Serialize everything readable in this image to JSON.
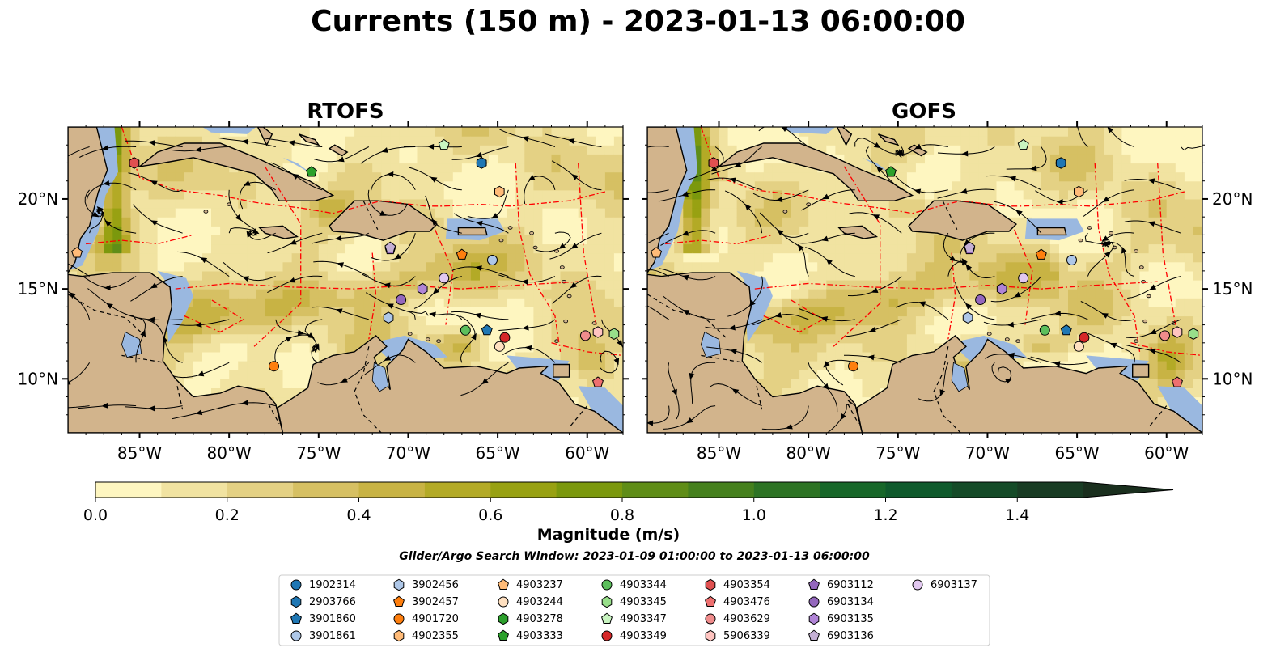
{
  "title": "Currents (150 m) - 2023-01-13 06:00:00",
  "panels": [
    {
      "title": "RTOFS"
    },
    {
      "title": "GOFS"
    }
  ],
  "map_axes": {
    "lon_ticks": [
      "85°W",
      "80°W",
      "75°W",
      "70°W",
      "65°W",
      "60°W"
    ],
    "lat_ticks": [
      "20°N",
      "15°N",
      "10°N"
    ]
  },
  "chart_data": {
    "type": "heatmap",
    "title": "Currents (150 m) - 2023-01-13 06:00:00",
    "panels": [
      "RTOFS",
      "GOFS"
    ],
    "variable": "Magnitude (m/s)",
    "depth": "150 m",
    "xlim": [
      -89.0,
      -58.0
    ],
    "ylim": [
      7.0,
      24.0
    ],
    "colorbar": {
      "label": "Magnitude (m/s)",
      "ticks": [
        0.0,
        0.2,
        0.4,
        0.6,
        0.8,
        1.0,
        1.2,
        1.4
      ],
      "tick_labels": [
        "0.0",
        "0.2",
        "0.4",
        "0.6",
        "0.8",
        "1.0",
        "1.2",
        "1.4"
      ],
      "range": [
        0.0,
        1.5
      ],
      "extend": "max",
      "colors": [
        "#fef6c0",
        "#f1e3a1",
        "#e4d184",
        "#d6c063",
        "#c8b344",
        "#b3aa26",
        "#98a112",
        "#7b980d",
        "#5f8d17",
        "#45801d",
        "#2d7324",
        "#176729",
        "#0f5a2c",
        "#154b28",
        "#193c24",
        "#1a2f1e"
      ]
    },
    "search_window": "Glider/Argo Search Window: 2023-01-09 01:00:00 to 2023-01-13 06:00:00",
    "floats": [
      {
        "id": "1902314",
        "lon": -65.9,
        "lat": 22.0
      },
      {
        "id": "2903766",
        "lon": -65.9,
        "lat": 22.0
      },
      {
        "id": "3901860",
        "lon": -65.6,
        "lat": 12.7
      },
      {
        "id": "3901861",
        "lon": -65.3,
        "lat": 16.6
      },
      {
        "id": "3902456",
        "lon": -71.1,
        "lat": 13.4
      },
      {
        "id": "3902457",
        "lon": -67.0,
        "lat": 16.9
      },
      {
        "id": "4901720",
        "lon": -77.5,
        "lat": 10.7
      },
      {
        "id": "4902355",
        "lon": -64.9,
        "lat": 20.4
      },
      {
        "id": "4903237",
        "lon": -88.5,
        "lat": 17.0
      },
      {
        "id": "4903244",
        "lon": -64.9,
        "lat": 11.8
      },
      {
        "id": "4903278",
        "lon": -85.3,
        "lat": 22.0
      },
      {
        "id": "4903333",
        "lon": -75.4,
        "lat": 21.5
      },
      {
        "id": "4903344",
        "lon": -66.8,
        "lat": 12.7
      },
      {
        "id": "4903345",
        "lon": -58.5,
        "lat": 12.5
      },
      {
        "id": "4903347",
        "lon": -68.0,
        "lat": 23.0
      },
      {
        "id": "4903349",
        "lon": -64.6,
        "lat": 12.3
      },
      {
        "id": "4903354",
        "lon": -85.3,
        "lat": 22.0
      },
      {
        "id": "4903476",
        "lon": -59.4,
        "lat": 9.8
      },
      {
        "id": "4903629",
        "lon": -60.1,
        "lat": 12.4
      },
      {
        "id": "5906339",
        "lon": -59.4,
        "lat": 12.6
      },
      {
        "id": "6903112",
        "lon": -71.0,
        "lat": 17.2
      },
      {
        "id": "6903134",
        "lon": -70.4,
        "lat": 14.4
      },
      {
        "id": "6903135",
        "lon": -69.2,
        "lat": 15.0
      },
      {
        "id": "6903136",
        "lon": -71.0,
        "lat": 17.3
      },
      {
        "id": "6903137",
        "lon": -68.0,
        "lat": 15.6
      }
    ]
  },
  "legend": {
    "items": [
      {
        "label": "1902314",
        "marker": "circle",
        "color": "#1f77b4"
      },
      {
        "label": "2903766",
        "marker": "hexagon",
        "color": "#1f77b4"
      },
      {
        "label": "3901860",
        "marker": "pentagon",
        "color": "#1f77b4"
      },
      {
        "label": "3901861",
        "marker": "circle",
        "color": "#aec7e8"
      },
      {
        "label": "3902456",
        "marker": "hexagon",
        "color": "#aec7e8"
      },
      {
        "label": "3902457",
        "marker": "pentagon",
        "color": "#ff7f0e"
      },
      {
        "label": "4901720",
        "marker": "circle",
        "color": "#ff7f0e"
      },
      {
        "label": "4902355",
        "marker": "hexagon",
        "color": "#ffbb78"
      },
      {
        "label": "4903237",
        "marker": "pentagon",
        "color": "#ffbb78"
      },
      {
        "label": "4903244",
        "marker": "circle",
        "color": "#ffe0c0"
      },
      {
        "label": "4903278",
        "marker": "hexagon",
        "color": "#2ca02c"
      },
      {
        "label": "4903333",
        "marker": "pentagon",
        "color": "#2ca02c"
      },
      {
        "label": "4903344",
        "marker": "circle",
        "color": "#5cbf5c"
      },
      {
        "label": "4903345",
        "marker": "hexagon",
        "color": "#98df8a"
      },
      {
        "label": "4903347",
        "marker": "pentagon",
        "color": "#c8f4c0"
      },
      {
        "label": "4903349",
        "marker": "circle",
        "color": "#d62728"
      },
      {
        "label": "4903354",
        "marker": "hexagon",
        "color": "#e05050"
      },
      {
        "label": "4903476",
        "marker": "pentagon",
        "color": "#ee6f6f"
      },
      {
        "label": "4903629",
        "marker": "circle",
        "color": "#f08c8c"
      },
      {
        "label": "5906339",
        "marker": "hexagon",
        "color": "#ffc4c0"
      },
      {
        "label": "6903112",
        "marker": "pentagon",
        "color": "#9467bd"
      },
      {
        "label": "6903134",
        "marker": "circle",
        "color": "#9467bd"
      },
      {
        "label": "6903135",
        "marker": "hexagon",
        "color": "#b084d6"
      },
      {
        "label": "6903136",
        "marker": "pentagon",
        "color": "#c5b0d5"
      },
      {
        "label": "6903137",
        "marker": "circle",
        "color": "#e2c8f0"
      }
    ]
  },
  "colors": {
    "land": "#d2b48c",
    "shelf_water": "#9ab8e0",
    "eez_line": "#ff0000",
    "border_line": "#000000",
    "streamline": "#000000"
  }
}
